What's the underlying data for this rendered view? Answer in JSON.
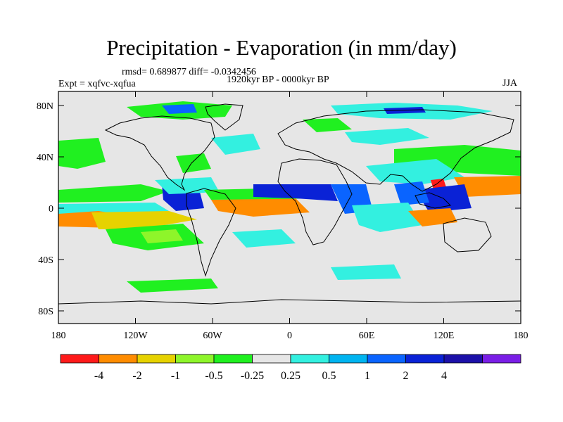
{
  "title": "Precipitation - Evaporation (in mm/day)",
  "stats": "rmsd= 0.689877 diff= -0.0342456",
  "experiment": "Expt = xqfvc-xqfua",
  "period": "1920kyr BP - 0000kyr BP",
  "season": "JJA",
  "axes": {
    "lat_ticks": [
      "80N",
      "40N",
      "0",
      "40S",
      "80S"
    ],
    "lon_ticks": [
      "180",
      "120W",
      "60W",
      "0",
      "60E",
      "120E",
      "180"
    ]
  },
  "colorbar": {
    "colors": [
      "#ff1a1a",
      "#ff8c00",
      "#e6d200",
      "#8ef52a",
      "#20f020",
      "#e6e6e6",
      "#33f0e0",
      "#00b4f0",
      "#0a64ff",
      "#0a22d6",
      "#1c10a8",
      "#7a1ee6"
    ],
    "labels": [
      "-4",
      "-2",
      "-1",
      "-0.5",
      "-0.25",
      "0.25",
      "0.5",
      "1",
      "2",
      "4"
    ]
  },
  "colors": {
    "no_change": "#e6e6e6",
    "wet_moderate": "#00b4f0",
    "wet_strong": "#0a22d6",
    "dry_moderate": "#20f020",
    "dry_strong": "#ff8c00"
  }
}
